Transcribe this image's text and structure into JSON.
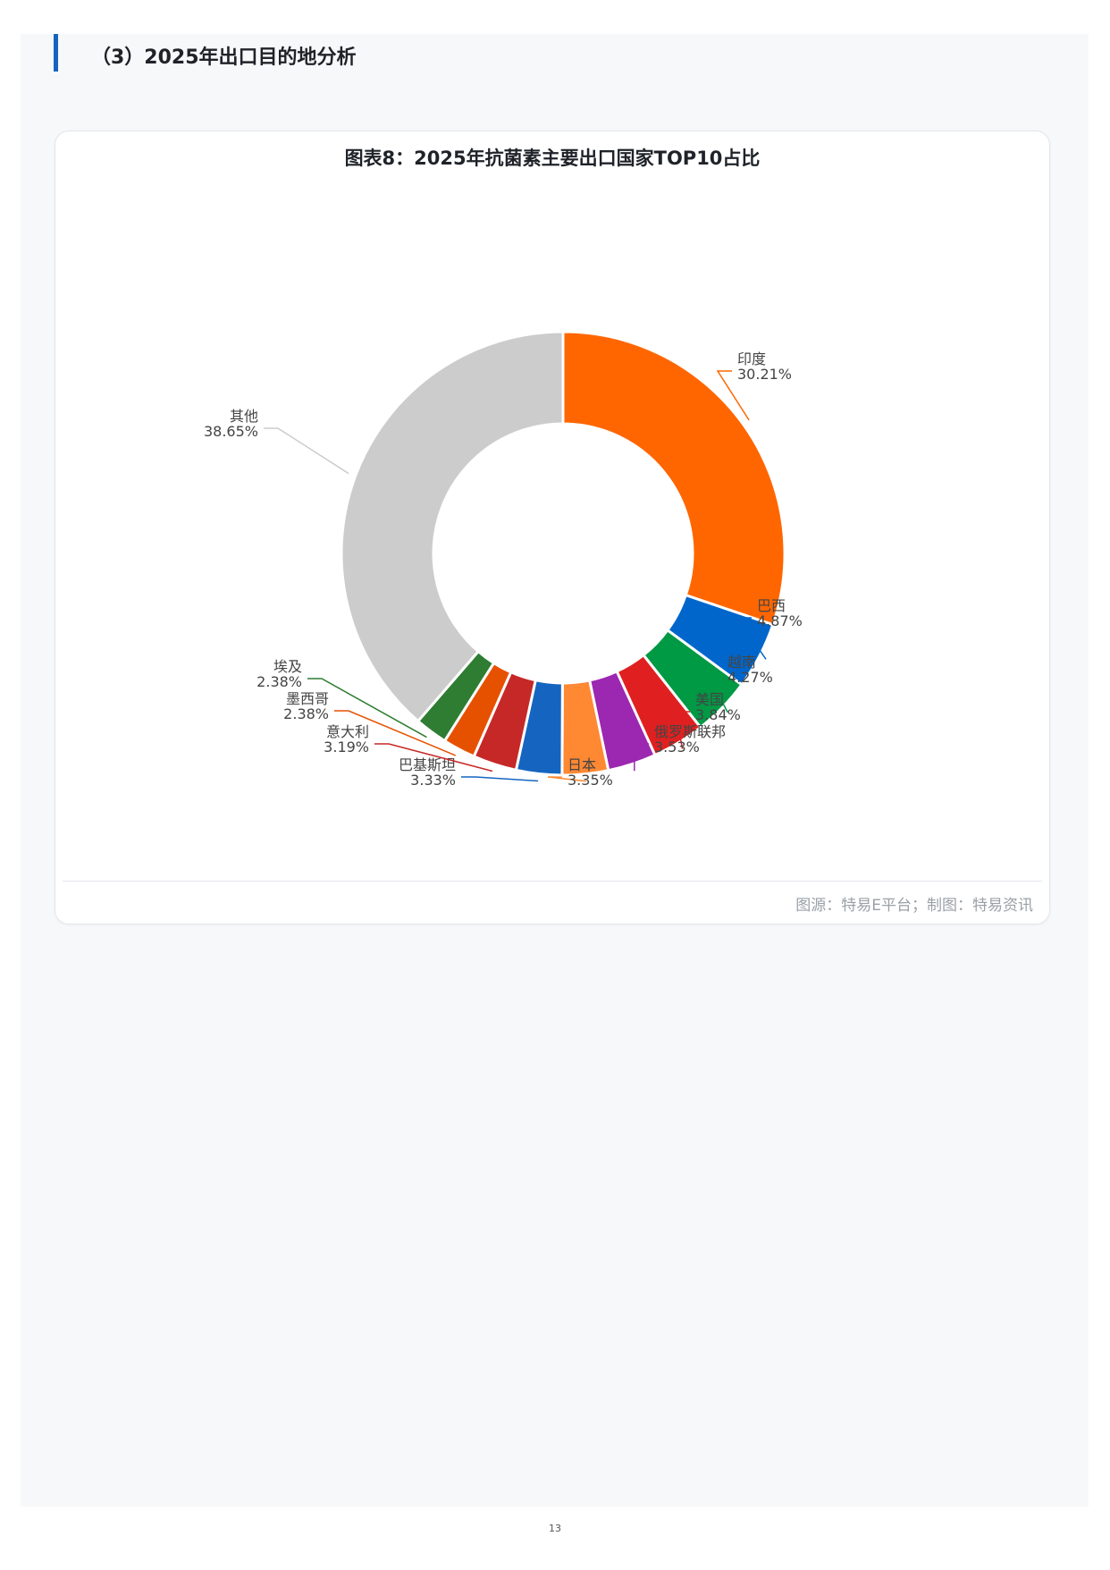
{
  "section": {
    "title": "（3）2025年出口目的地分析"
  },
  "chart_card": {
    "title": "图表8：2025年抗菌素主要出口国家TOP10占比",
    "source": "图源：特易E平台；制图：特易资讯"
  },
  "page_number": "13",
  "chart_data": {
    "type": "pie",
    "variant": "donut",
    "title": "图表8：2025年抗菌素主要出口国家TOP10占比",
    "slices": [
      {
        "name": "印度",
        "value": 30.21,
        "label": "30.21%",
        "color": "#ff6600"
      },
      {
        "name": "巴西",
        "value": 4.87,
        "label": "4.87%",
        "color": "#0066cc"
      },
      {
        "name": "越南",
        "value": 4.27,
        "label": "4.27%",
        "color": "#009944"
      },
      {
        "name": "美国",
        "value": 3.84,
        "label": "3.84%",
        "color": "#e02020"
      },
      {
        "name": "俄罗斯联邦",
        "value": 3.53,
        "label": "3.53%",
        "color": "#9c27b0"
      },
      {
        "name": "日本",
        "value": 3.35,
        "label": "3.35%",
        "color": "#ff8833"
      },
      {
        "name": "巴基斯坦",
        "value": 3.33,
        "label": "3.33%",
        "color": "#1565c0"
      },
      {
        "name": "意大利",
        "value": 3.19,
        "label": "3.19%",
        "color": "#c62828"
      },
      {
        "name": "墨西哥",
        "value": 2.38,
        "label": "2.38%",
        "color": "#e65100"
      },
      {
        "name": "埃及",
        "value": 2.38,
        "label": "2.38%",
        "color": "#2e7d32"
      },
      {
        "name": "其他",
        "value": 38.65,
        "label": "38.65%",
        "color": "#cccccc"
      }
    ],
    "start_angle": "12 o'clock",
    "direction": "clockwise",
    "legend": "none"
  }
}
